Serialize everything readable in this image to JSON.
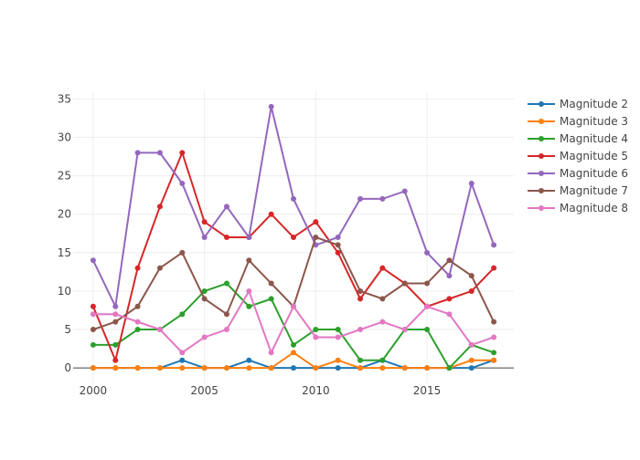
{
  "chart_data": {
    "type": "line",
    "title": "",
    "xlabel": "",
    "ylabel": "",
    "x": [
      2000,
      2001,
      2002,
      2003,
      2004,
      2005,
      2006,
      2007,
      2008,
      2009,
      2010,
      2011,
      2012,
      2013,
      2014,
      2015,
      2016,
      2017,
      2018
    ],
    "xticks": [
      2000,
      2005,
      2010,
      2015
    ],
    "yticks": [
      0,
      5,
      10,
      15,
      20,
      25,
      30,
      35
    ],
    "xlim": [
      1999.1,
      2018.9
    ],
    "ylim": [
      -2,
      36
    ],
    "grid": true,
    "legend_position": "right",
    "series": [
      {
        "name": "Magnitude 2",
        "color": "#1f77b4",
        "values": [
          0,
          0,
          0,
          0,
          1,
          0,
          0,
          1,
          0,
          0,
          0,
          0,
          0,
          1,
          0,
          0,
          0,
          0,
          1
        ]
      },
      {
        "name": "Magnitude 3",
        "color": "#ff7f0e",
        "values": [
          0,
          0,
          0,
          0,
          0,
          0,
          0,
          0,
          0,
          2,
          0,
          1,
          0,
          0,
          0,
          0,
          0,
          1,
          1
        ]
      },
      {
        "name": "Magnitude 4",
        "color": "#2ca02c",
        "values": [
          3,
          3,
          5,
          5,
          7,
          10,
          11,
          8,
          9,
          3,
          5,
          5,
          1,
          1,
          5,
          5,
          0,
          3,
          2
        ]
      },
      {
        "name": "Magnitude 5",
        "color": "#d62728",
        "values": [
          8,
          1,
          13,
          21,
          28,
          19,
          17,
          17,
          20,
          17,
          19,
          15,
          9,
          13,
          11,
          8,
          9,
          10,
          13
        ]
      },
      {
        "name": "Magnitude 6",
        "color": "#9467bd",
        "values": [
          14,
          8,
          28,
          28,
          24,
          17,
          21,
          17,
          34,
          22,
          16,
          17,
          22,
          22,
          23,
          15,
          12,
          24,
          16
        ]
      },
      {
        "name": "Magnitude 7",
        "color": "#8c564b",
        "values": [
          5,
          6,
          8,
          13,
          15,
          9,
          7,
          14,
          11,
          8,
          17,
          16,
          10,
          9,
          11,
          11,
          14,
          12,
          6
        ]
      },
      {
        "name": "Magnitude 8",
        "color": "#e377c2",
        "values": [
          7,
          7,
          6,
          5,
          2,
          4,
          5,
          10,
          2,
          8,
          4,
          4,
          5,
          6,
          5,
          8,
          7,
          3,
          4
        ]
      }
    ]
  }
}
